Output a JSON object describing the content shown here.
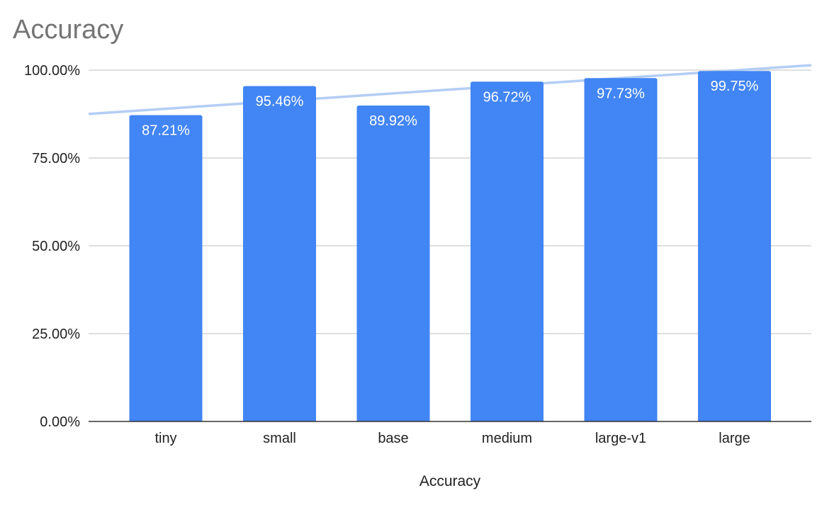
{
  "chart_data": {
    "type": "bar",
    "title": "Accuracy",
    "xlabel": "Accuracy",
    "ylabel": "",
    "categories": [
      "tiny",
      "small",
      "base",
      "medium",
      "large-v1",
      "large"
    ],
    "series": [
      {
        "values": [
          87.21,
          95.46,
          89.92,
          96.72,
          97.73,
          99.75
        ],
        "data_labels": [
          "87.21%",
          "95.46%",
          "89.92%",
          "96.72%",
          "97.73%",
          "99.75%"
        ],
        "color": "#4285f4"
      }
    ],
    "trendline": {
      "type": "linear",
      "color": "#b3cdf5"
    },
    "ylim": [
      0,
      100
    ],
    "yticks": [
      0,
      25,
      50,
      75,
      100
    ],
    "ytick_labels": [
      "0.00%",
      "25.00%",
      "50.00%",
      "75.00%",
      "100.00%"
    ],
    "grid": true,
    "legend": "none"
  }
}
